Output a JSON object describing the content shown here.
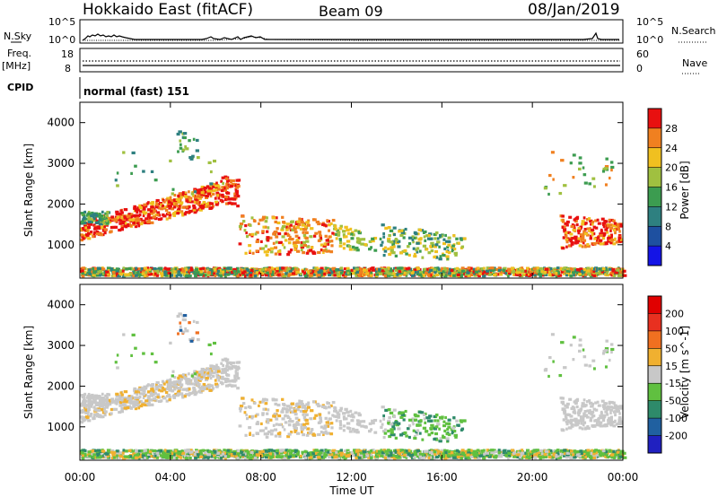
{
  "header": {
    "title": "Hokkaido East (fitACF)",
    "beam": "Beam 09",
    "date": "08/Jan/2019"
  },
  "aux_panels": {
    "nsky_label": "N.Sky",
    "nsky_ticks": [
      "10^5",
      "10^0"
    ],
    "nsearch_label": "N.Search",
    "nsearch_ticks": [
      "10^5",
      "10^0"
    ],
    "freq_label": "Freq.",
    "freq_unit": "[MHz]",
    "freq_ticks": [
      "18",
      "8"
    ],
    "nave_label": "Nave",
    "nave_ticks": [
      "60",
      "0"
    ],
    "cpid_label": "CPID",
    "cpid_text": "normal (fast) 151"
  },
  "chart_data": [
    {
      "type": "heatmap",
      "name": "power",
      "ylabel": "Slant Range [km]",
      "xlabel": "",
      "xlim": [
        0,
        24
      ],
      "ylim": [
        180,
        4500
      ],
      "yticks": [
        "1000",
        "2000",
        "3000",
        "4000"
      ],
      "colorbar_label": "Power [dB]",
      "colorbar_ticks": [
        "4",
        "8",
        "12",
        "16",
        "20",
        "24",
        "28"
      ],
      "colorbar_range": [
        0,
        32
      ],
      "colors": [
        "#1414e6",
        "#1e50a0",
        "#2e8080",
        "#3c9c50",
        "#a0c040",
        "#f0c020",
        "#f08020",
        "#e81010"
      ]
    },
    {
      "type": "heatmap",
      "name": "velocity",
      "ylabel": "Slant Range [km]",
      "xlabel": "Time UT",
      "xlim": [
        0,
        24
      ],
      "ylim": [
        180,
        4500
      ],
      "yticks": [
        "1000",
        "2000",
        "3000",
        "4000"
      ],
      "xticks": [
        "00:00",
        "04:00",
        "08:00",
        "12:00",
        "16:00",
        "20:00",
        "00:00"
      ],
      "colorbar_label": "Velocity [m s^-1]",
      "colorbar_ticks": [
        "200",
        "100",
        "50",
        "15",
        "-15",
        "-50",
        "-100",
        "-200"
      ],
      "colors": [
        "#2020c0",
        "#2060a0",
        "#2e8a6a",
        "#60c040",
        "#c8c8c8",
        "#f0b030",
        "#f07020",
        "#e83020",
        "#e00000"
      ]
    }
  ]
}
